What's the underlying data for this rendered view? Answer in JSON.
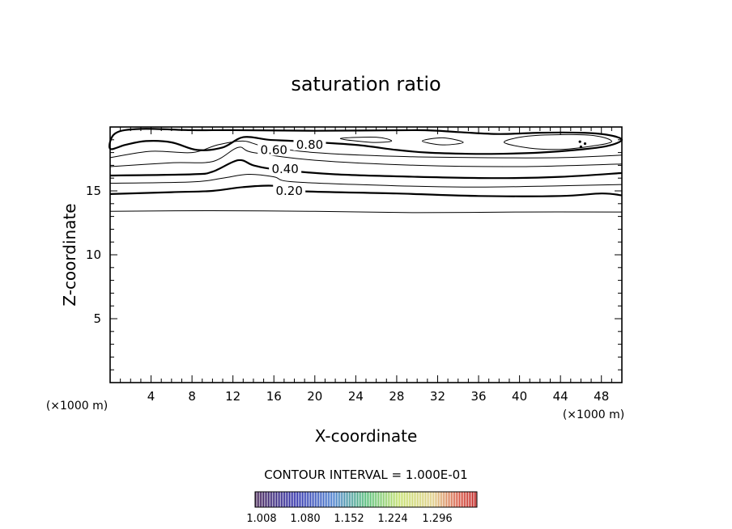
{
  "chart_data": {
    "type": "contour",
    "title": "saturation ratio",
    "xlabel": "X-coordinate",
    "ylabel": "Z-coordinate",
    "x_unit": "(×1000 m)",
    "x_unit_right": "(×1000 m)",
    "xlim": [
      0,
      50
    ],
    "ylim": [
      0,
      20
    ],
    "x_ticks": [
      4,
      8,
      12,
      16,
      20,
      24,
      28,
      32,
      36,
      40,
      44,
      48
    ],
    "y_ticks": [
      5,
      10,
      15
    ],
    "contour_interval_text": "CONTOUR INTERVAL = 1.000E-01",
    "contour_labels": [
      {
        "text": "0.20",
        "x": 17.5,
        "z": 15.0
      },
      {
        "text": "0.40",
        "x": 17.1,
        "z": 16.7
      },
      {
        "text": "0.60",
        "x": 16.0,
        "z": 18.2
      },
      {
        "text": "0.80",
        "x": 19.5,
        "z": 18.6
      }
    ],
    "colorbar_ticks": [
      "1.008",
      "1.080",
      "1.152",
      "1.224",
      "1.296"
    ],
    "contours": [
      {
        "level": "0.10",
        "bold": false,
        "pts": [
          [
            0,
            13.4
          ],
          [
            10,
            13.45
          ],
          [
            20,
            13.4
          ],
          [
            30,
            13.3
          ],
          [
            40,
            13.35
          ],
          [
            50,
            13.35
          ]
        ]
      },
      {
        "level": "0.20",
        "bold": true,
        "pts": [
          [
            0,
            14.75
          ],
          [
            6,
            14.9
          ],
          [
            10,
            15.0
          ],
          [
            13,
            15.3
          ],
          [
            16,
            15.4
          ],
          [
            18,
            15.0
          ],
          [
            28,
            14.8
          ],
          [
            36,
            14.6
          ],
          [
            44,
            14.6
          ],
          [
            48,
            14.8
          ],
          [
            50,
            14.65
          ]
        ]
      },
      {
        "level": "0.30",
        "bold": false,
        "pts": [
          [
            0,
            15.6
          ],
          [
            8,
            15.7
          ],
          [
            11,
            16.0
          ],
          [
            13.5,
            16.3
          ],
          [
            16,
            16.1
          ],
          [
            18,
            15.7
          ],
          [
            28,
            15.4
          ],
          [
            36,
            15.3
          ],
          [
            44,
            15.4
          ],
          [
            50,
            15.5
          ]
        ]
      },
      {
        "level": "0.40",
        "bold": true,
        "pts": [
          [
            0,
            16.2
          ],
          [
            8,
            16.3
          ],
          [
            10,
            16.5
          ],
          [
            12.5,
            17.4
          ],
          [
            14,
            17.0
          ],
          [
            16,
            16.7
          ],
          [
            22,
            16.3
          ],
          [
            30,
            16.1
          ],
          [
            38,
            16.0
          ],
          [
            44,
            16.1
          ],
          [
            50,
            16.4
          ]
        ]
      },
      {
        "level": "0.50",
        "bold": false,
        "pts": [
          [
            0,
            16.9
          ],
          [
            6,
            17.2
          ],
          [
            10,
            17.3
          ],
          [
            12.5,
            18.4
          ],
          [
            14,
            18.0
          ],
          [
            20,
            17.4
          ],
          [
            30,
            17.0
          ],
          [
            40,
            16.9
          ],
          [
            50,
            17.1
          ]
        ]
      },
      {
        "level": "0.60",
        "bold": false,
        "pts": [
          [
            0,
            17.6
          ],
          [
            4,
            18.1
          ],
          [
            8,
            18.0
          ],
          [
            10.5,
            18.6
          ],
          [
            13,
            18.9
          ],
          [
            15,
            18.5
          ],
          [
            20,
            18.0
          ],
          [
            28,
            17.7
          ],
          [
            36,
            17.6
          ],
          [
            44,
            17.6
          ],
          [
            50,
            17.8
          ]
        ]
      }
    ],
    "closed_contours": [
      {
        "level": "0.80",
        "bold": true,
        "pts": [
          [
            0,
            18.3
          ],
          [
            1.5,
            18.6
          ],
          [
            3.5,
            18.9
          ],
          [
            6,
            18.8
          ],
          [
            8.5,
            18.2
          ],
          [
            11,
            18.4
          ],
          [
            13,
            19.2
          ],
          [
            15.5,
            19.0
          ],
          [
            18,
            18.9
          ],
          [
            24,
            18.6
          ],
          [
            28,
            18.2
          ],
          [
            31,
            18.0
          ],
          [
            35,
            17.9
          ],
          [
            38,
            17.9
          ],
          [
            42,
            18.0
          ],
          [
            45.5,
            18.2
          ],
          [
            48.5,
            18.5
          ],
          [
            50,
            19.0
          ],
          [
            48.5,
            19.4
          ],
          [
            46,
            19.55
          ],
          [
            42,
            19.55
          ],
          [
            38,
            19.45
          ],
          [
            34,
            19.6
          ],
          [
            30,
            19.75
          ],
          [
            20,
            19.7
          ],
          [
            12,
            19.75
          ],
          [
            8,
            19.75
          ],
          [
            3,
            19.85
          ],
          [
            0.5,
            19.5
          ]
        ]
      },
      {
        "level": "0.90",
        "bold": false,
        "pts": [
          [
            38.5,
            18.8
          ],
          [
            41,
            18.35
          ],
          [
            44,
            18.25
          ],
          [
            47,
            18.5
          ],
          [
            49,
            18.85
          ],
          [
            47.5,
            19.3
          ],
          [
            44,
            19.4
          ],
          [
            40.5,
            19.25
          ]
        ]
      },
      {
        "level": "0.90",
        "bold": false,
        "pts": [
          [
            30.5,
            18.9
          ],
          [
            32.5,
            18.6
          ],
          [
            34.5,
            18.8
          ],
          [
            32.5,
            19.15
          ]
        ]
      },
      {
        "level": "0.90",
        "bold": false,
        "pts": [
          [
            22.5,
            19.1
          ],
          [
            25.5,
            18.8
          ],
          [
            27.5,
            18.9
          ],
          [
            26,
            19.2
          ]
        ]
      }
    ],
    "tiny_features": [
      {
        "x": 45.9,
        "z": 18.85
      },
      {
        "x": 46.4,
        "z": 18.7
      },
      {
        "x": 46.0,
        "z": 18.45
      }
    ]
  }
}
